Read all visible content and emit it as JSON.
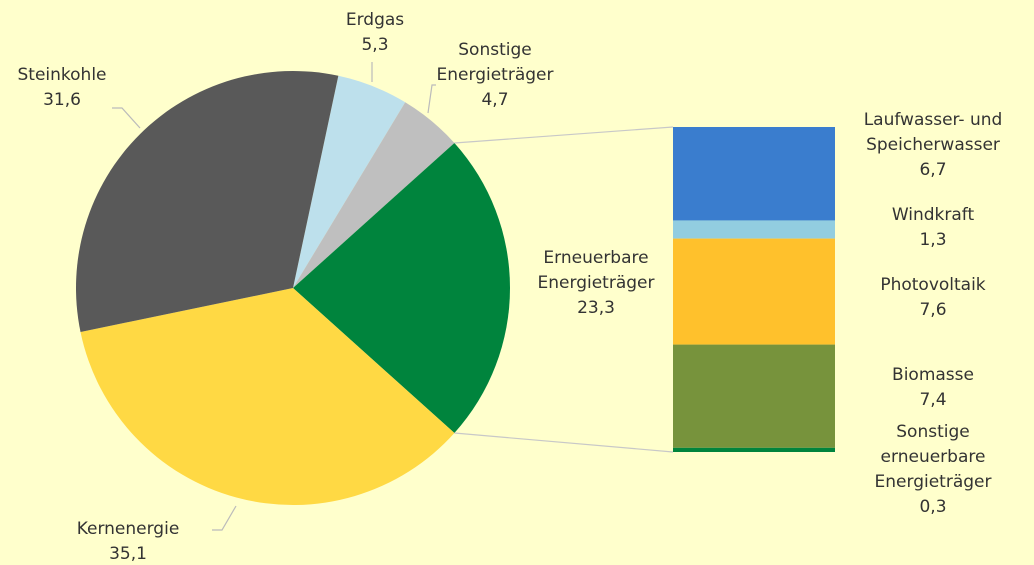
{
  "chart_data": [
    {
      "type": "pie",
      "categories": [
        "Erdgas",
        "Sonstige\nEnergieträger",
        "Erneuerbare\nEnergieträger",
        "Kernenergie",
        "Steinkohle"
      ],
      "values": [
        5.3,
        4.7,
        23.3,
        35.1,
        31.6
      ],
      "value_labels": [
        "5,3",
        "4,7",
        "23,3",
        "35,1",
        "31,6"
      ],
      "colors": [
        "#bde0ec",
        "#bfbfbf",
        "#00843d",
        "#ffd944",
        "#595959"
      ]
    },
    {
      "type": "bar",
      "stacked": true,
      "categories": [
        "Laufwasser- und\nSpeicherwasser",
        "Windkraft",
        "Photovoltaik",
        "Biomasse",
        "Sonstige\nerneuerbare\nEnergieträger"
      ],
      "values": [
        6.7,
        1.3,
        7.6,
        7.4,
        0.3
      ],
      "value_labels": [
        "6,7",
        "1,3",
        "7,6",
        "7,4",
        "0,3"
      ],
      "colors": [
        "#3a7dce",
        "#92cde0",
        "#ffc12c",
        "#77933c",
        "#00843d"
      ]
    }
  ]
}
